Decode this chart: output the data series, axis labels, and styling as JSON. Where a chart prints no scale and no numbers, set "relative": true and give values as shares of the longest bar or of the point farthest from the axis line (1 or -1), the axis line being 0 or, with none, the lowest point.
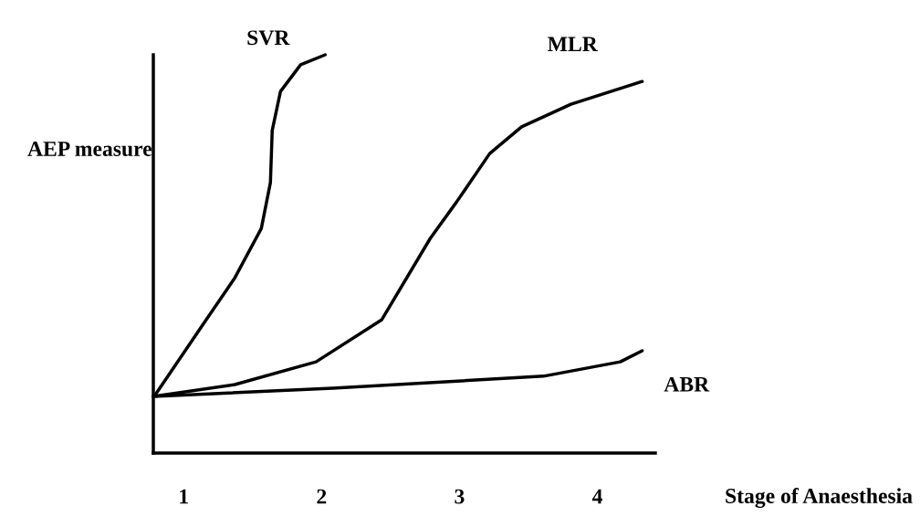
{
  "chart_data": {
    "type": "line",
    "relative": true,
    "xlabel": "Stage of Anaesthesia",
    "ylabel": "AEP measure",
    "xlim": [
      0.78,
      4.42
    ],
    "xticks": [
      1,
      2,
      3,
      4
    ],
    "grid": false,
    "legend": false,
    "marker": "none",
    "line_style": "solid",
    "series": [
      {
        "name": "SVR",
        "color": "#000000",
        "x": [
          0.78,
          0.795,
          1.132,
          1.371,
          1.563,
          1.629,
          1.642,
          1.702,
          1.848,
          2.026
        ],
        "values": [
          0.142,
          0.147,
          0.319,
          0.44,
          0.564,
          0.679,
          0.81,
          0.908,
          0.975,
          1.0
        ]
      },
      {
        "name": "MLR",
        "color": "#000000",
        "x": [
          0.78,
          1.371,
          1.96,
          2.437,
          2.788,
          2.98,
          3.219,
          3.45,
          3.808,
          4.325
        ],
        "values": [
          0.142,
          0.172,
          0.229,
          0.335,
          0.539,
          0.631,
          0.752,
          0.819,
          0.876,
          0.933
        ]
      },
      {
        "name": "ABR",
        "color": "#000000",
        "x": [
          0.78,
          2.079,
          3.609,
          4.166,
          4.325
        ],
        "values": [
          0.142,
          0.163,
          0.193,
          0.229,
          0.257
        ]
      }
    ]
  }
}
